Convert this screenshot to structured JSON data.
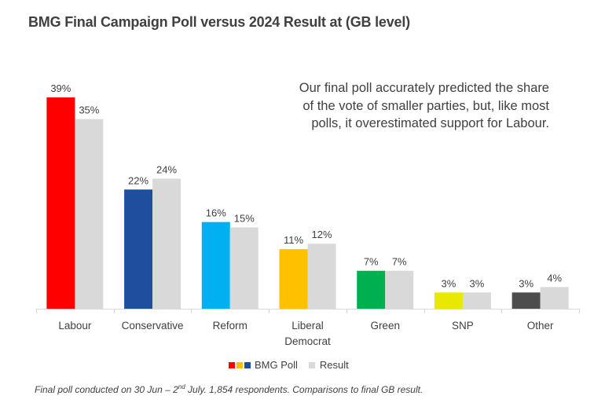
{
  "chart_data": {
    "type": "bar",
    "title": "BMG Final Campaign  Poll versus 2024 Result at (GB level)",
    "xlabel": "",
    "ylabel": "",
    "ylim": [
      0,
      40
    ],
    "grid": false,
    "categories": [
      "Labour",
      "Conservative",
      "Reform",
      "Liberal Democrat",
      "Green",
      "SNP",
      "Other"
    ],
    "category_lines": [
      [
        "Labour"
      ],
      [
        "Conservative"
      ],
      [
        "Reform"
      ],
      [
        "Liberal",
        "Democrat"
      ],
      [
        "Green"
      ],
      [
        "SNP"
      ],
      [
        "Other"
      ]
    ],
    "series": [
      {
        "name": "BMG Poll",
        "values": [
          39,
          22,
          16,
          11,
          7,
          3,
          3
        ],
        "labels": [
          "39%",
          "22%",
          "16%",
          "11%",
          "7%",
          "3%",
          "3%"
        ],
        "colors": [
          "#FF0000",
          "#1F4E9F",
          "#00B0F0",
          "#FFC000",
          "#00B050",
          "#E8E800",
          "#4D4D4D"
        ]
      },
      {
        "name": "Result",
        "values": [
          35,
          24,
          15,
          12,
          7,
          3,
          4
        ],
        "labels": [
          "35%",
          "24%",
          "15%",
          "12%",
          "7%",
          "3%",
          "4%"
        ],
        "color": "#D9D9D9"
      }
    ],
    "legend": {
      "position": "bottom",
      "entries": [
        {
          "label": "BMG Poll",
          "swatches": [
            "#FF0000",
            "#FFC000",
            "#1F4E9F"
          ]
        },
        {
          "label": "Result",
          "swatches": [
            "#D9D9D9"
          ]
        }
      ]
    },
    "annotation": "Our final poll accurately predicted the share of the vote of smaller parties, but, like most polls, it overestimated support for Labour."
  },
  "footnote": {
    "before": "Final poll conducted on 30 Jun – 2",
    "sup": "nd",
    "after": " July. 1,854  respondents. Comparisons to final GB result."
  }
}
